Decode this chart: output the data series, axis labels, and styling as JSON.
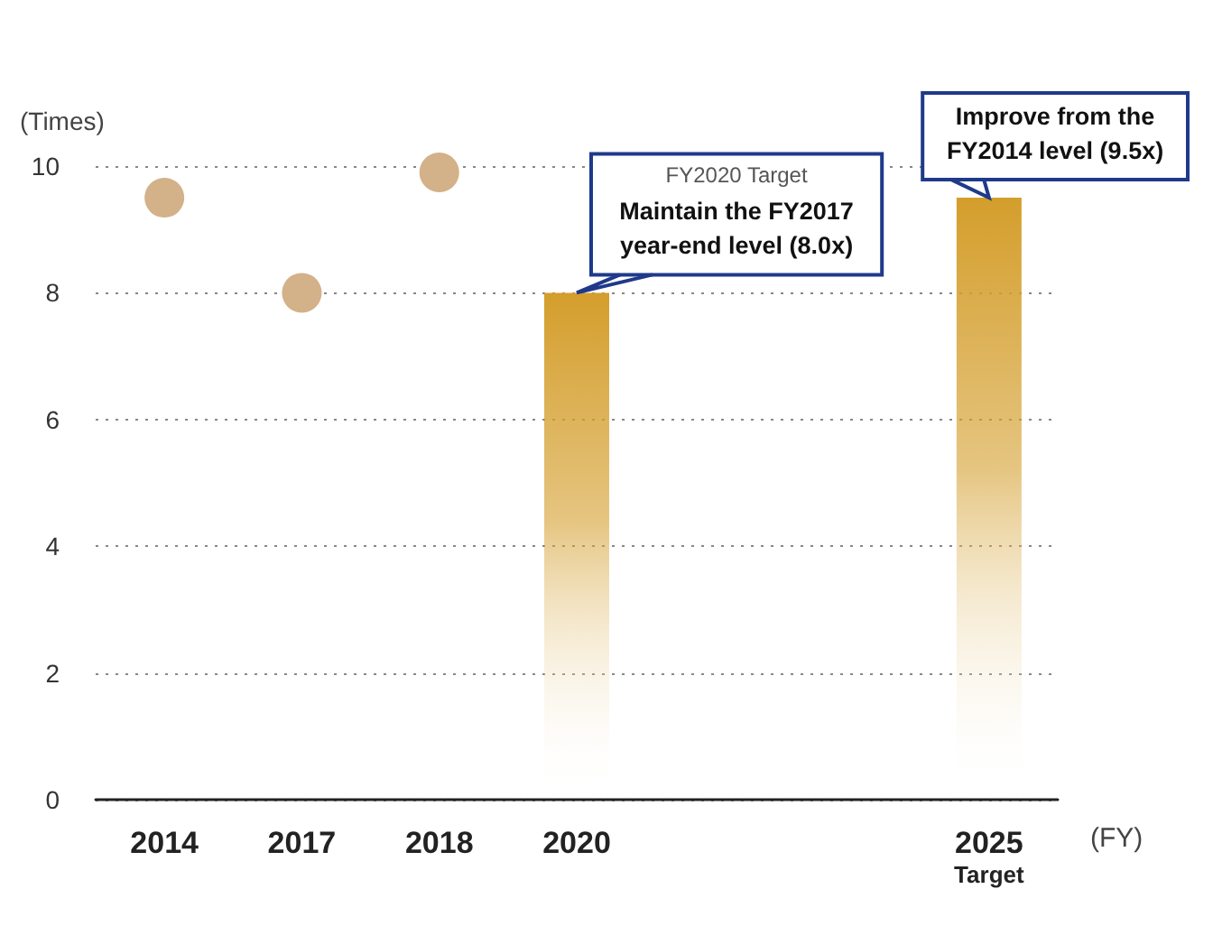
{
  "chart_data": {
    "type": "bar",
    "ylabel": "(Times)",
    "xlabel": "(FY)",
    "categories": [
      "2014",
      "2017",
      "2018",
      "2020",
      null,
      null,
      "2025\nTarget"
    ],
    "series": [
      {
        "type": "scatter",
        "color": "#d3b189",
        "values": [
          9.5,
          8.0,
          9.9,
          null,
          null,
          null,
          null
        ]
      },
      {
        "color": "#d49e2c",
        "values": [
          null,
          null,
          null,
          8.0,
          null,
          null,
          9.5
        ]
      }
    ],
    "ylim": [
      0,
      10
    ],
    "yticks": [
      0,
      2,
      4,
      6,
      8,
      10
    ],
    "grid": "y",
    "marker": "circle",
    "annotations": [
      {
        "text": "FY2020 Target\nMaintain the FY2017\nyear-end level (8.0x)",
        "x": "2020",
        "y": 8.0
      },
      {
        "text": "Improve from the\nFY2014 level (9.5x)",
        "x": "2025\nTarget",
        "y": 9.5
      }
    ]
  }
}
